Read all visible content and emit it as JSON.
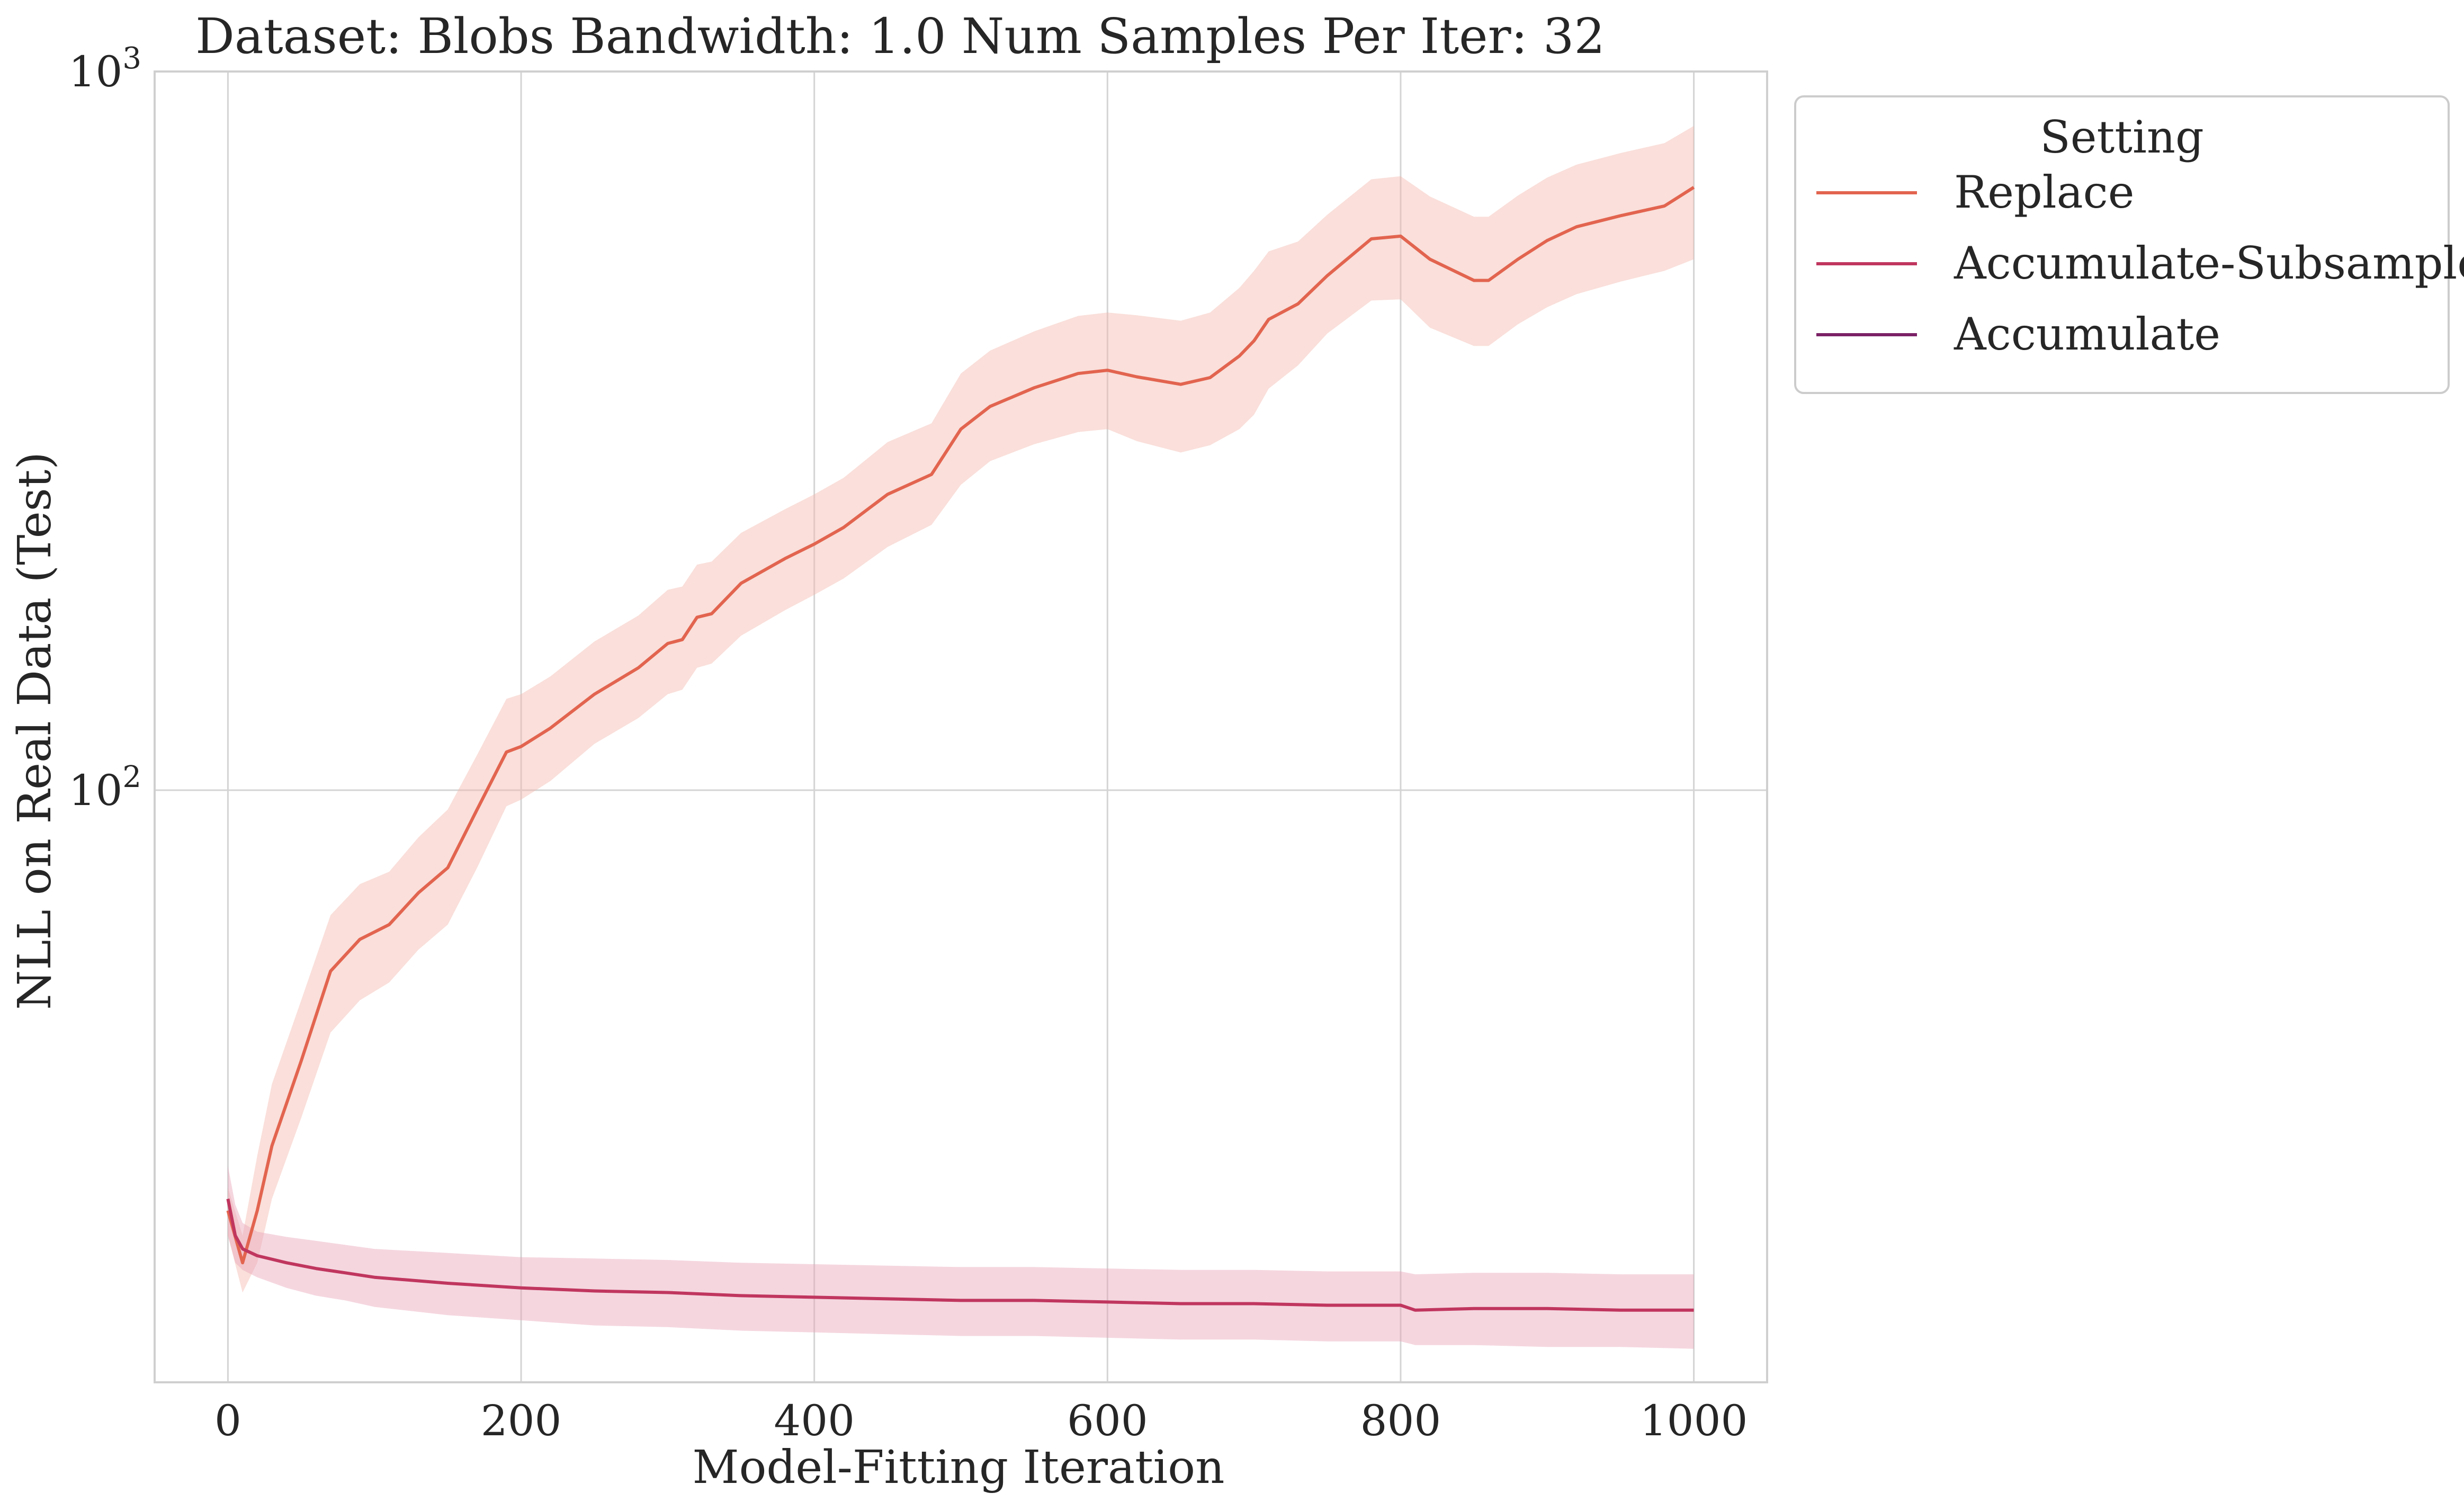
{
  "chart_data": {
    "type": "line",
    "title": "Dataset: Blobs Bandwidth: 1.0 Num Samples Per Iter: 32",
    "xlabel": "Model-Fitting Iteration",
    "ylabel": "NLL on Real Data (Test)",
    "xlim": [
      -50,
      1050
    ],
    "ylim": [
      15,
      1000
    ],
    "yscale": "log",
    "grid": true,
    "x_ticks": [
      0,
      200,
      400,
      600,
      800,
      1000
    ],
    "x_tick_labels": [
      "0",
      "200",
      "400",
      "600",
      "800",
      "1000"
    ],
    "y_ticks": [
      100,
      1000
    ],
    "y_tick_labels": [
      {
        "base": "10",
        "exp": "2"
      },
      {
        "base": "10",
        "exp": "3"
      }
    ],
    "legend": {
      "title": "Setting",
      "placement": "outside-top-right",
      "entries": [
        "Replace",
        "Accumulate-Subsample",
        "Accumulate"
      ]
    },
    "series": [
      {
        "name": "Replace",
        "color": "#e2644f",
        "band_color": "#f4b8ad",
        "x": [
          0,
          10,
          20,
          30,
          50,
          70,
          90,
          110,
          130,
          150,
          170,
          190,
          200,
          220,
          250,
          280,
          300,
          310,
          320,
          330,
          350,
          380,
          400,
          420,
          450,
          480,
          500,
          520,
          550,
          580,
          600,
          620,
          650,
          670,
          690,
          700,
          710,
          730,
          750,
          780,
          800,
          820,
          850,
          860,
          880,
          900,
          920,
          950,
          980,
          1000
        ],
        "y": [
          26,
          22,
          26,
          32,
          42,
          56,
          62,
          65,
          72,
          78,
          94,
          113,
          115,
          122,
          136,
          148,
          160,
          162,
          174,
          176,
          194,
          210,
          220,
          232,
          258,
          275,
          318,
          342,
          363,
          380,
          384,
          376,
          367,
          375,
          402,
          422,
          452,
          475,
          520,
          585,
          590,
          548,
          512,
          512,
          548,
          582,
          608,
          630,
          650,
          690
        ],
        "lower": [
          24,
          20,
          22,
          27,
          35,
          46,
          51,
          54,
          60,
          65,
          78,
          95,
          97,
          103,
          116,
          126,
          136,
          138,
          148,
          150,
          164,
          178,
          187,
          197,
          218,
          234,
          266,
          287,
          303,
          315,
          318,
          306,
          295,
          302,
          318,
          333,
          362,
          390,
          432,
          480,
          482,
          440,
          415,
          415,
          445,
          470,
          490,
          510,
          528,
          548
        ],
        "upper": [
          28,
          24,
          31,
          39,
          51,
          67,
          74,
          77,
          86,
          94,
          112,
          134,
          136,
          144,
          161,
          175,
          190,
          192,
          206,
          208,
          228,
          246,
          258,
          272,
          305,
          324,
          380,
          409,
          435,
          457,
          462,
          458,
          450,
          462,
          500,
          528,
          562,
          580,
          632,
          708,
          715,
          670,
          628,
          628,
          672,
          712,
          742,
          770,
          795,
          840
        ]
      },
      {
        "name": "Accumulate-Subsample",
        "color": "#c0365e",
        "band_color": "#e8a3b7",
        "x": [
          0,
          5,
          10,
          20,
          40,
          60,
          80,
          100,
          150,
          200,
          250,
          300,
          350,
          400,
          450,
          500,
          550,
          600,
          650,
          700,
          750,
          800,
          810,
          850,
          900,
          950,
          1000
        ],
        "y": [
          27,
          24,
          23,
          22.5,
          22,
          21.6,
          21.3,
          21,
          20.6,
          20.3,
          20.1,
          20.0,
          19.8,
          19.7,
          19.6,
          19.5,
          19.5,
          19.4,
          19.3,
          19.3,
          19.2,
          19.2,
          18.9,
          19.0,
          19.0,
          18.9,
          18.9
        ],
        "lower": [
          24,
          22,
          21.5,
          21,
          20.3,
          19.8,
          19.5,
          19.1,
          18.6,
          18.3,
          18.0,
          17.9,
          17.7,
          17.6,
          17.5,
          17.4,
          17.4,
          17.3,
          17.2,
          17.2,
          17.1,
          17.1,
          16.9,
          16.9,
          16.8,
          16.8,
          16.7
        ],
        "upper": [
          30,
          26.5,
          25,
          24.3,
          23.9,
          23.6,
          23.3,
          23.0,
          22.7,
          22.4,
          22.3,
          22.2,
          22.0,
          21.9,
          21.8,
          21.7,
          21.7,
          21.6,
          21.5,
          21.5,
          21.4,
          21.4,
          21.2,
          21.3,
          21.3,
          21.2,
          21.2
        ]
      },
      {
        "name": "Accumulate",
        "color": "#7b2266",
        "x": [],
        "y": []
      }
    ]
  }
}
